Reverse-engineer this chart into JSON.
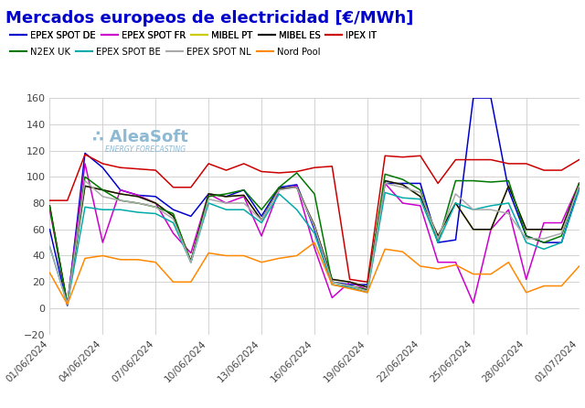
{
  "title": "Mercados europeos de electricidad [€/MWh]",
  "title_color": "#0000cc",
  "background_color": "#ffffff",
  "grid_color": "#cccccc",
  "ylim": [
    -20,
    160
  ],
  "yticks": [
    -20,
    0,
    20,
    40,
    60,
    80,
    100,
    120,
    140,
    160
  ],
  "xtick_labels": [
    "01/06/2024",
    "04/06/2024",
    "07/06/2024",
    "10/06/2024",
    "13/06/2024",
    "16/06/2024",
    "19/06/2024",
    "22/06/2024",
    "25/06/2024",
    "28/06/2024",
    "01/07/2024"
  ],
  "series": [
    {
      "name": "EPEX SPOT DE",
      "color": "#0000cc",
      "data": [
        60,
        2,
        118,
        107,
        90,
        86,
        85,
        75,
        70,
        87,
        85,
        90,
        70,
        92,
        94,
        60,
        20,
        18,
        18,
        95,
        95,
        95,
        50,
        52,
        160,
        160,
        90,
        55,
        50,
        50,
        92
      ]
    },
    {
      "name": "EPEX SPOT FR",
      "color": "#cc00cc",
      "data": [
        75,
        3,
        110,
        50,
        90,
        86,
        80,
        57,
        42,
        87,
        80,
        85,
        55,
        90,
        93,
        46,
        8,
        20,
        14,
        95,
        80,
        78,
        35,
        35,
        4,
        60,
        75,
        22,
        65,
        65,
        95
      ]
    },
    {
      "name": "MIBEL PT",
      "color": "#cccc00",
      "data": [
        78,
        3,
        93,
        90,
        87,
        85,
        80,
        70,
        36,
        87,
        85,
        86,
        67,
        91,
        92,
        63,
        22,
        20,
        16,
        97,
        94,
        85,
        55,
        80,
        60,
        60,
        93,
        60,
        60,
        60,
        95
      ]
    },
    {
      "name": "MIBEL ES",
      "color": "#111111",
      "data": [
        78,
        3,
        93,
        90,
        87,
        85,
        80,
        70,
        36,
        87,
        85,
        86,
        67,
        91,
        92,
        63,
        22,
        20,
        16,
        97,
        94,
        85,
        55,
        80,
        60,
        60,
        93,
        60,
        60,
        60,
        95
      ]
    },
    {
      "name": "IPEX IT",
      "color": "#cc0000",
      "data": [
        82,
        82,
        117,
        110,
        107,
        106,
        105,
        92,
        92,
        110,
        105,
        110,
        104,
        103,
        104,
        107,
        108,
        22,
        20,
        116,
        115,
        116,
        95,
        113,
        113,
        113,
        110,
        110,
        105,
        105,
        113
      ]
    },
    {
      "name": "N2EX UK",
      "color": "#007700",
      "data": [
        77,
        3,
        100,
        90,
        82,
        80,
        77,
        72,
        35,
        85,
        87,
        90,
        75,
        92,
        103,
        87,
        20,
        17,
        14,
        102,
        98,
        90,
        50,
        97,
        97,
        96,
        97,
        55,
        50,
        55,
        95
      ]
    },
    {
      "name": "EPEX SPOT BE",
      "color": "#00aaaa",
      "data": [
        47,
        3,
        77,
        75,
        75,
        73,
        72,
        65,
        35,
        80,
        75,
        75,
        65,
        87,
        75,
        57,
        18,
        16,
        12,
        88,
        84,
        83,
        50,
        80,
        75,
        78,
        80,
        50,
        45,
        50,
        90
      ]
    },
    {
      "name": "EPEX SPOT NL",
      "color": "#aaaaaa",
      "data": [
        47,
        3,
        97,
        85,
        82,
        80,
        77,
        68,
        35,
        83,
        80,
        80,
        67,
        90,
        92,
        62,
        20,
        17,
        13,
        95,
        92,
        88,
        53,
        87,
        75,
        75,
        72,
        53,
        53,
        57,
        93
      ]
    },
    {
      "name": "Nord Pool",
      "color": "#ff8800",
      "data": [
        27,
        3,
        38,
        40,
        37,
        37,
        35,
        20,
        20,
        42,
        40,
        40,
        35,
        38,
        40,
        50,
        18,
        15,
        12,
        45,
        43,
        32,
        30,
        33,
        26,
        26,
        35,
        12,
        17,
        17,
        32
      ]
    }
  ],
  "logo_color": "#7aadcc",
  "logo_dot_color": "#5588aa"
}
